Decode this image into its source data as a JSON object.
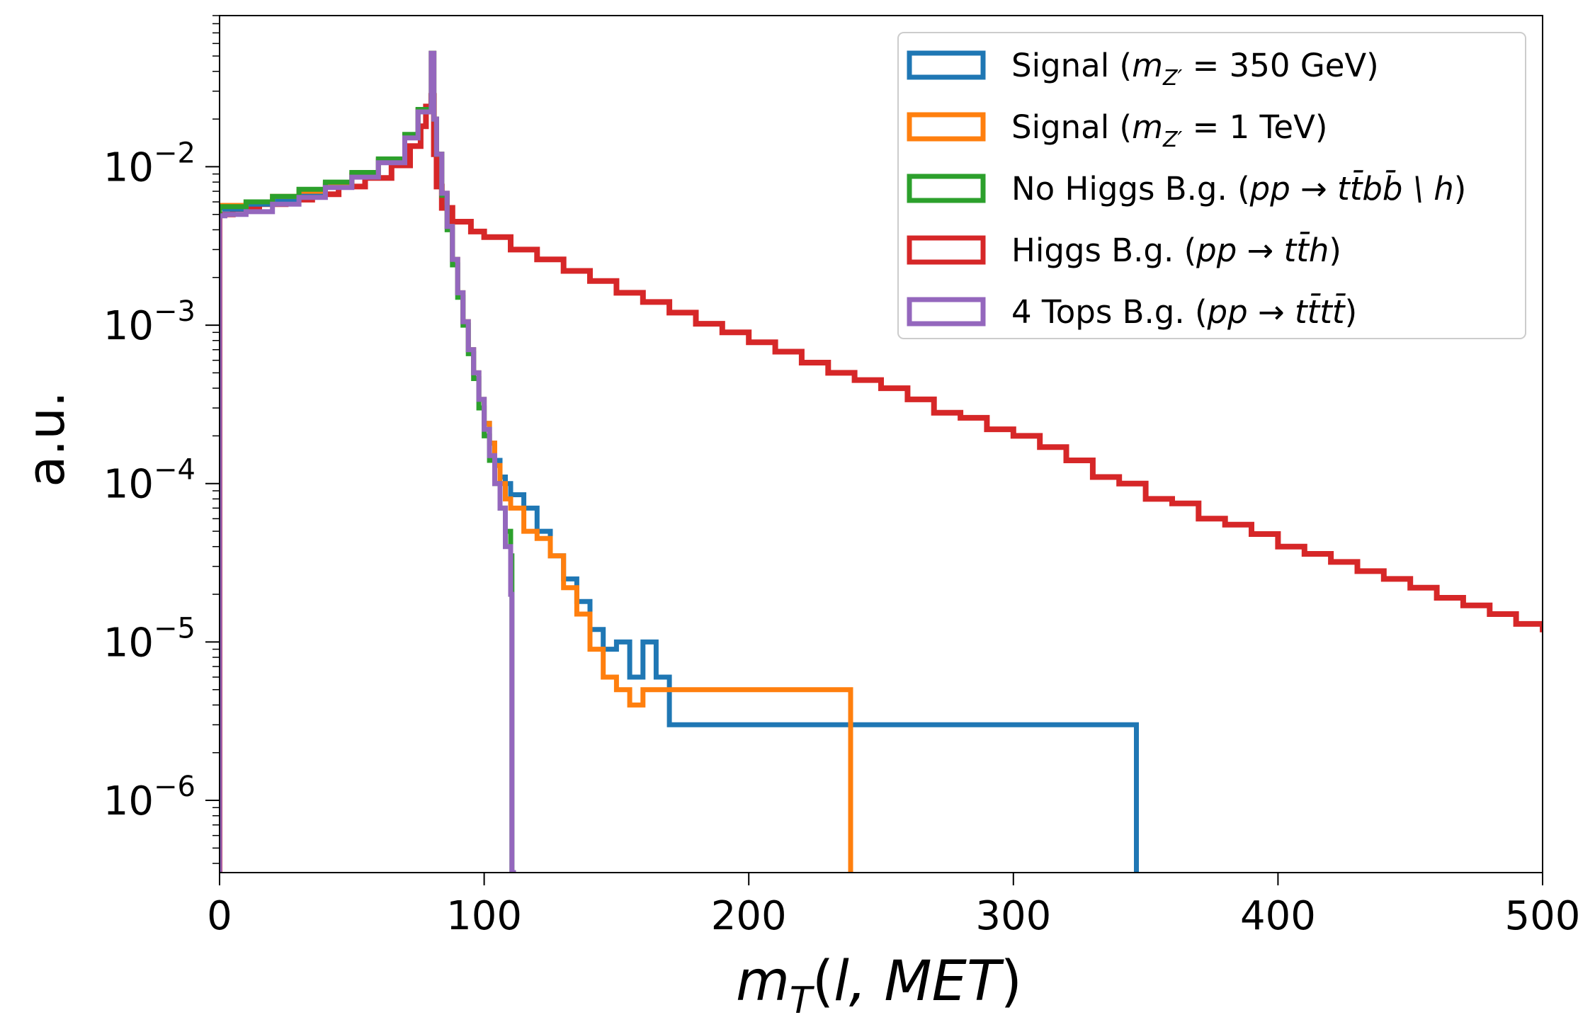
{
  "chart_data": {
    "type": "step-histogram",
    "title": "",
    "xlabel": "m_T(l, MET)",
    "ylabel": "a.u.",
    "xlim": [
      0,
      500
    ],
    "ylim": [
      3.5e-07,
      0.09
    ],
    "yscale": "log",
    "grid": false,
    "legend_position": "upper right",
    "x_ticks": [
      "0",
      "100",
      "200",
      "300",
      "400",
      "500"
    ],
    "y_ticks": [
      {
        "base": "10",
        "exp": "−2",
        "value": 0.01
      },
      {
        "base": "10",
        "exp": "−3",
        "value": 0.001
      },
      {
        "base": "10",
        "exp": "−4",
        "value": 0.0001
      },
      {
        "base": "10",
        "exp": "−5",
        "value": 1e-05
      },
      {
        "base": "10",
        "exp": "−6",
        "value": 1e-06
      }
    ],
    "series": [
      {
        "name": "Signal (m_Z′ = 350 GeV)",
        "color": "#1f77b4",
        "points": [
          [
            0,
            0.0055
          ],
          [
            2,
            0.0054
          ],
          [
            10,
            0.0058
          ],
          [
            20,
            0.0062
          ],
          [
            30,
            0.0068
          ],
          [
            40,
            0.0076
          ],
          [
            50,
            0.0088
          ],
          [
            60,
            0.0108
          ],
          [
            70,
            0.0155
          ],
          [
            75,
            0.0225
          ],
          [
            80,
            0.052
          ],
          [
            81,
            0.02
          ],
          [
            82,
            0.012
          ],
          [
            84,
            0.0068
          ],
          [
            86,
            0.0042
          ],
          [
            88,
            0.0026
          ],
          [
            90,
            0.0016
          ],
          [
            92,
            0.00105
          ],
          [
            94,
            0.0007
          ],
          [
            96,
            0.0005
          ],
          [
            98,
            0.00034
          ],
          [
            100,
            0.00024
          ],
          [
            102,
            0.00018
          ],
          [
            104,
            0.00014
          ],
          [
            106,
            0.00011
          ],
          [
            108,
            0.0001
          ],
          [
            110,
            8.5e-05
          ],
          [
            115,
            7e-05
          ],
          [
            120,
            5e-05
          ],
          [
            125,
            3.5e-05
          ],
          [
            130,
            2.5e-05
          ],
          [
            135,
            1.8e-05
          ],
          [
            140,
            1.2e-05
          ],
          [
            145,
            9e-06
          ],
          [
            150,
            1e-05
          ],
          [
            155,
            6e-06
          ],
          [
            160,
            1e-05
          ],
          [
            165,
            6e-06
          ],
          [
            170,
            3e-06
          ],
          [
            185,
            3e-06
          ],
          [
            190,
            3e-06
          ],
          [
            234,
            3e-06
          ],
          [
            345,
            3e-06
          ]
        ]
      },
      {
        "name": "Signal (m_Z′ = 1 TeV)",
        "color": "#ff7f0e",
        "points": [
          [
            0,
            0.0057
          ],
          [
            2,
            0.0057
          ],
          [
            10,
            0.006
          ],
          [
            20,
            0.0065
          ],
          [
            30,
            0.007
          ],
          [
            40,
            0.0078
          ],
          [
            50,
            0.009
          ],
          [
            60,
            0.011
          ],
          [
            70,
            0.0158
          ],
          [
            75,
            0.0228
          ],
          [
            80,
            0.052
          ],
          [
            81,
            0.02
          ],
          [
            82,
            0.012
          ],
          [
            84,
            0.0068
          ],
          [
            86,
            0.0042
          ],
          [
            88,
            0.0026
          ],
          [
            90,
            0.0016
          ],
          [
            92,
            0.00105
          ],
          [
            94,
            0.0007
          ],
          [
            96,
            0.0005
          ],
          [
            98,
            0.00034
          ],
          [
            100,
            0.00024
          ],
          [
            102,
            0.00018
          ],
          [
            104,
            0.00013
          ],
          [
            106,
            0.0001
          ],
          [
            108,
            8e-05
          ],
          [
            110,
            7e-05
          ],
          [
            115,
            5e-05
          ],
          [
            120,
            4.5e-05
          ],
          [
            125,
            3.5e-05
          ],
          [
            130,
            2.2e-05
          ],
          [
            135,
            1.5e-05
          ],
          [
            140,
            9e-06
          ],
          [
            145,
            6e-06
          ],
          [
            150,
            5e-06
          ],
          [
            155,
            4e-06
          ],
          [
            160,
            5e-06
          ],
          [
            170,
            5e-06
          ],
          [
            176,
            5e-06
          ],
          [
            182,
            5e-06
          ],
          [
            190,
            5e-06
          ],
          [
            208,
            5e-06
          ],
          [
            237,
            5e-06
          ]
        ]
      },
      {
        "name": "No Higgs B.g. (pp → tt̄bb̄ \\ h)",
        "color": "#2ca02c",
        "points": [
          [
            0,
            0.0056
          ],
          [
            2,
            0.0056
          ],
          [
            10,
            0.006
          ],
          [
            20,
            0.0065
          ],
          [
            30,
            0.0072
          ],
          [
            40,
            0.008
          ],
          [
            50,
            0.0092
          ],
          [
            60,
            0.0112
          ],
          [
            70,
            0.016
          ],
          [
            75,
            0.023
          ],
          [
            80,
            0.052
          ],
          [
            81,
            0.02
          ],
          [
            82,
            0.012
          ],
          [
            84,
            0.0066
          ],
          [
            86,
            0.004
          ],
          [
            88,
            0.0024
          ],
          [
            90,
            0.0015
          ],
          [
            92,
            0.001
          ],
          [
            94,
            0.00066
          ],
          [
            96,
            0.00046
          ],
          [
            98,
            0.0003
          ],
          [
            100,
            0.0002
          ],
          [
            102,
            0.00014
          ],
          [
            104,
            0.0001
          ],
          [
            106,
            7e-05
          ],
          [
            108,
            5e-05
          ],
          [
            110,
            3.5e-05
          ],
          [
            110.5,
            0.0
          ]
        ]
      },
      {
        "name": "Higgs B.g. (pp → tt̄h)",
        "color": "#d62728",
        "points": [
          [
            0,
            0.005
          ],
          [
            5,
            0.0054
          ],
          [
            15,
            0.0058
          ],
          [
            25,
            0.0062
          ],
          [
            35,
            0.0067
          ],
          [
            45,
            0.0075
          ],
          [
            55,
            0.0085
          ],
          [
            65,
            0.0102
          ],
          [
            72,
            0.0135
          ],
          [
            76,
            0.018
          ],
          [
            78,
            0.024
          ],
          [
            80,
            0.028
          ],
          [
            81,
            0.012
          ],
          [
            82,
            0.0075
          ],
          [
            84,
            0.0055
          ],
          [
            88,
            0.0045
          ],
          [
            95,
            0.0039
          ],
          [
            100,
            0.0036
          ],
          [
            110,
            0.003
          ],
          [
            120,
            0.0026
          ],
          [
            130,
            0.0022
          ],
          [
            140,
            0.0019
          ],
          [
            150,
            0.0016
          ],
          [
            160,
            0.0014
          ],
          [
            170,
            0.0012
          ],
          [
            180,
            0.00102
          ],
          [
            190,
            0.0009
          ],
          [
            200,
            0.00078
          ],
          [
            210,
            0.00068
          ],
          [
            220,
            0.00058
          ],
          [
            230,
            0.0005
          ],
          [
            240,
            0.00045
          ],
          [
            250,
            0.0004
          ],
          [
            260,
            0.00034
          ],
          [
            270,
            0.00028
          ],
          [
            280,
            0.00026
          ],
          [
            290,
            0.00022
          ],
          [
            300,
            0.0002
          ],
          [
            310,
            0.00017
          ],
          [
            320,
            0.00014
          ],
          [
            330,
            0.00011
          ],
          [
            340,
            0.0001
          ],
          [
            350,
            8e-05
          ],
          [
            360,
            7.5e-05
          ],
          [
            370,
            6e-05
          ],
          [
            380,
            5.5e-05
          ],
          [
            390,
            4.8e-05
          ],
          [
            400,
            4e-05
          ],
          [
            410,
            3.6e-05
          ],
          [
            420,
            3.2e-05
          ],
          [
            430,
            2.8e-05
          ],
          [
            440,
            2.5e-05
          ],
          [
            450,
            2.2e-05
          ],
          [
            460,
            1.9e-05
          ],
          [
            470,
            1.7e-05
          ],
          [
            480,
            1.5e-05
          ],
          [
            490,
            1.3e-05
          ],
          [
            500,
            1.2e-05
          ]
        ]
      },
      {
        "name": "4 Tops B.g. (pp → tt̄tt̄)",
        "color": "#9467bd",
        "points": [
          [
            0,
            0.0049
          ],
          [
            2,
            0.005
          ],
          [
            10,
            0.0052
          ],
          [
            20,
            0.0058
          ],
          [
            30,
            0.0064
          ],
          [
            40,
            0.0074
          ],
          [
            50,
            0.0086
          ],
          [
            60,
            0.0106
          ],
          [
            70,
            0.0152
          ],
          [
            75,
            0.0222
          ],
          [
            80,
            0.052
          ],
          [
            81,
            0.02
          ],
          [
            82,
            0.012
          ],
          [
            84,
            0.0068
          ],
          [
            86,
            0.0042
          ],
          [
            88,
            0.0026
          ],
          [
            90,
            0.0016
          ],
          [
            92,
            0.00105
          ],
          [
            94,
            0.0007
          ],
          [
            96,
            0.0005
          ],
          [
            98,
            0.00034
          ],
          [
            100,
            0.00022
          ],
          [
            102,
            0.00015
          ],
          [
            104,
            0.0001
          ],
          [
            106,
            7e-05
          ],
          [
            108,
            4e-05
          ],
          [
            110,
            2e-05
          ],
          [
            110.5,
            0.0
          ]
        ]
      }
    ]
  },
  "legend": {
    "items": [
      {
        "color": "#1f77b4",
        "prefix": "Signal (",
        "math": "m",
        "sub": "Z′",
        "suffix": " = 350 GeV)"
      },
      {
        "color": "#ff7f0e",
        "prefix": "Signal (",
        "math": "m",
        "sub": "Z′",
        "suffix": " = 1 TeV)"
      },
      {
        "color": "#2ca02c",
        "prefix": "No Higgs B.g. (",
        "math": "pp → tt̄bb̄ \\ h",
        "sub": "",
        "suffix": ")"
      },
      {
        "color": "#d62728",
        "prefix": "Higgs B.g. (",
        "math": "pp → tt̄h",
        "sub": "",
        "suffix": ")"
      },
      {
        "color": "#9467bd",
        "prefix": "4 Tops B.g. (",
        "math": "pp → tt̄tt̄",
        "sub": "",
        "suffix": ")"
      }
    ]
  }
}
